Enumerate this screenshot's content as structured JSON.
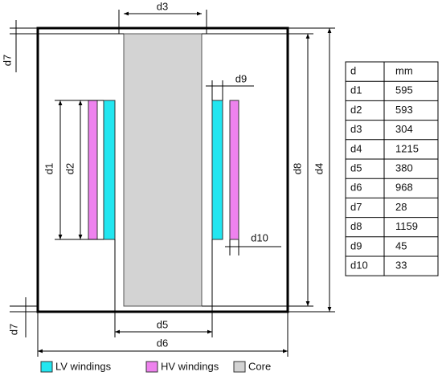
{
  "dimension_labels": [
    "d3",
    "d7",
    "d1",
    "d2",
    "d8",
    "d4",
    "d9",
    "d10",
    "d5",
    "d6",
    "d7"
  ],
  "table": {
    "header": [
      "d",
      "mm"
    ],
    "rows": [
      [
        "d1",
        595
      ],
      [
        "d2",
        593
      ],
      [
        "d3",
        304
      ],
      [
        "d4",
        1215
      ],
      [
        "d5",
        380
      ],
      [
        "d6",
        968
      ],
      [
        "d7",
        28
      ],
      [
        "d8",
        1159
      ],
      [
        "d9",
        45
      ],
      [
        "d10",
        33
      ]
    ]
  },
  "legend": [
    "LV windings",
    "HV windings",
    "Core"
  ]
}
